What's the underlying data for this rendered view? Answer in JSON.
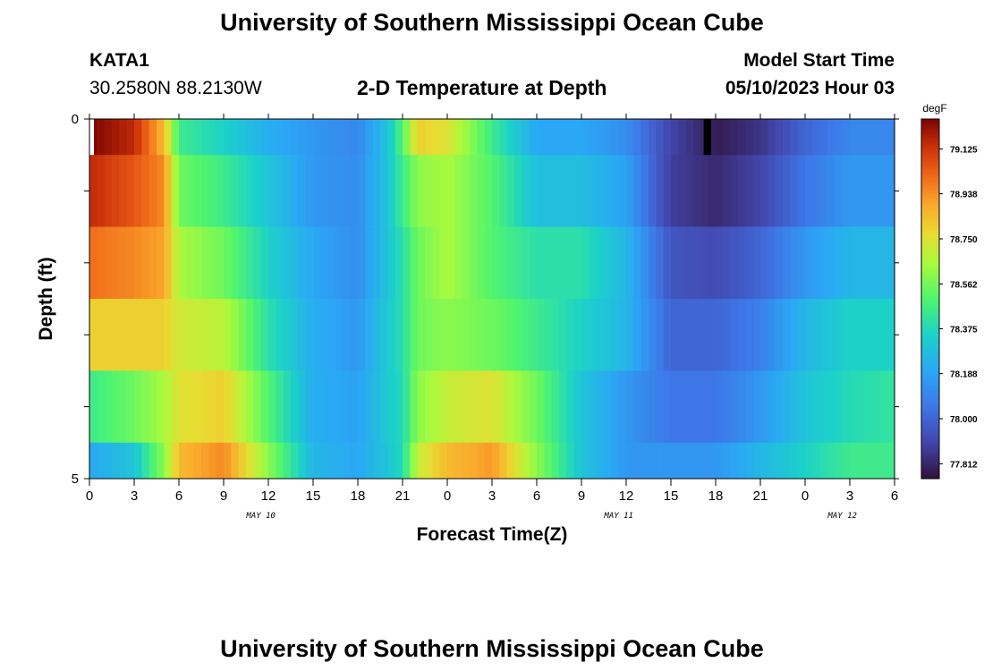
{
  "page": {
    "title": "University of Southern Mississippi Ocean Cube",
    "station": "KATA1",
    "coords": "30.2580N  88.2130W",
    "subtitle": "2-D Temperature at Depth",
    "model_start_label": "Model Start Time",
    "model_start_value": "05/10/2023 Hour 03",
    "footer_title": "University of Southern Mississippi Ocean Cube"
  },
  "chart_data": {
    "type": "heatmap",
    "title": "2-D Temperature at Depth",
    "xlabel": "Forecast Time(Z)",
    "ylabel": "Depth (ft)",
    "units": "degF",
    "x_range_hours": [
      0,
      54
    ],
    "x_tick_labels": [
      "0",
      "3",
      "6",
      "9",
      "12",
      "15",
      "18",
      "21",
      "0",
      "3",
      "6",
      "9",
      "12",
      "15",
      "18",
      "21",
      "0",
      "3",
      "6"
    ],
    "date_labels": [
      {
        "text": "MAY 10",
        "hour": 11.5
      },
      {
        "text": "MAY 11",
        "hour": 35.5
      },
      {
        "text": "MAY 12",
        "hour": 50.5
      }
    ],
    "y_range_ft": [
      0,
      5
    ],
    "y_tick_labels": [
      "0",
      "5"
    ],
    "colorbar": {
      "min": 77.75,
      "max": 79.25,
      "labels": [
        "79.125",
        "78.938",
        "78.750",
        "78.562",
        "78.375",
        "78.188",
        "78.000",
        "77.812"
      ]
    },
    "depth_bands_ft": [
      {
        "top": 0.0,
        "bottom": 0.5
      },
      {
        "top": 0.5,
        "bottom": 1.5
      },
      {
        "top": 1.5,
        "bottom": 2.5
      },
      {
        "top": 2.5,
        "bottom": 3.5
      },
      {
        "top": 3.5,
        "bottom": 4.5
      },
      {
        "top": 4.5,
        "bottom": 5.0
      }
    ],
    "keyframes_hours": [
      0,
      3,
      5,
      6,
      9,
      12,
      15,
      18,
      20,
      21,
      22,
      24,
      27,
      30,
      33,
      36,
      39,
      42,
      45,
      48,
      51,
      54
    ],
    "temperature_rows": [
      [
        79.25,
        79.15,
        78.85,
        78.45,
        78.35,
        78.22,
        78.15,
        78.1,
        78.3,
        78.5,
        78.8,
        78.75,
        78.45,
        78.2,
        78.2,
        78.12,
        77.9,
        77.78,
        77.85,
        78.0,
        78.1,
        78.1
      ],
      [
        79.15,
        79.05,
        78.95,
        78.55,
        78.45,
        78.3,
        78.15,
        78.12,
        78.3,
        78.45,
        78.6,
        78.65,
        78.5,
        78.28,
        78.28,
        78.18,
        77.88,
        77.82,
        77.9,
        78.05,
        78.15,
        78.15
      ],
      [
        79.0,
        78.95,
        78.9,
        78.65,
        78.55,
        78.35,
        78.2,
        78.12,
        78.3,
        78.4,
        78.55,
        78.65,
        78.5,
        78.4,
        78.4,
        78.25,
        77.95,
        77.92,
        78.0,
        78.15,
        78.25,
        78.25
      ],
      [
        78.8,
        78.8,
        78.8,
        78.72,
        78.68,
        78.4,
        78.22,
        78.15,
        78.32,
        78.4,
        78.55,
        78.6,
        78.55,
        78.45,
        78.35,
        78.25,
        78.0,
        78.0,
        78.08,
        78.25,
        78.35,
        78.35
      ],
      [
        78.45,
        78.55,
        78.65,
        78.75,
        78.8,
        78.5,
        78.22,
        78.18,
        78.32,
        78.38,
        78.6,
        78.7,
        78.75,
        78.55,
        78.3,
        78.15,
        78.05,
        78.05,
        78.15,
        78.3,
        78.38,
        78.42
      ],
      [
        78.2,
        78.3,
        78.6,
        78.85,
        78.95,
        78.6,
        78.25,
        78.2,
        78.3,
        78.38,
        78.7,
        78.85,
        78.92,
        78.6,
        78.3,
        78.15,
        78.15,
        78.15,
        78.25,
        78.35,
        78.45,
        78.45
      ]
    ],
    "gap_hours": [
      0,
      0.3
    ],
    "max_marker_hours": [
      41.2,
      41.7
    ]
  }
}
